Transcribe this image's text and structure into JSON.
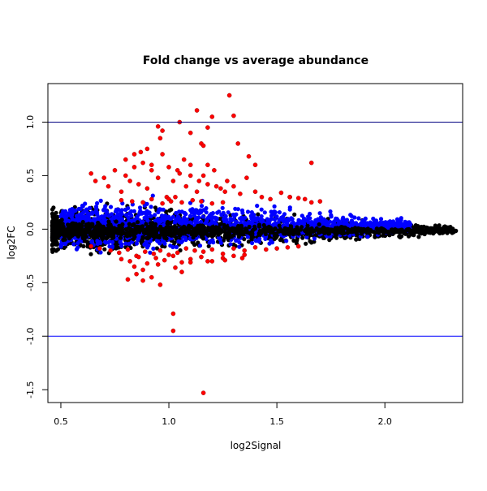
{
  "chart_data": {
    "type": "scatter",
    "title": "Fold change vs average abundance",
    "xlabel": "log2Signal",
    "ylabel": "log2FC",
    "xlim": [
      0.44,
      2.36
    ],
    "ylim": [
      -1.62,
      1.36
    ],
    "x_ticks": [
      0.5,
      1.0,
      1.5,
      2.0
    ],
    "x_tick_labels": [
      "0.5",
      "1.0",
      "1.5",
      "2.0"
    ],
    "y_ticks": [
      -1.5,
      -1.0,
      -0.5,
      0.0,
      0.5,
      1.0
    ],
    "y_tick_labels": [
      "-1.5",
      "-1.0",
      "-0.5",
      "0.0",
      "0.5",
      "1.0"
    ],
    "grid": false,
    "legend": "none",
    "reference_lines": [
      {
        "orientation": "horizontal",
        "y": 1.0,
        "color": "#000080"
      },
      {
        "orientation": "horizontal",
        "y": -1.0,
        "color": "#0000ff"
      }
    ],
    "colors": {
      "black_points": "#000000",
      "blue_points": "#0000ff",
      "red_points": "#ff0000"
    },
    "series": [
      {
        "color": "#ff0000",
        "x": [
          0.64,
          0.66,
          0.7,
          0.72,
          0.75,
          0.78,
          0.8,
          0.82,
          0.84,
          0.86,
          0.88,
          0.9,
          0.92,
          0.95,
          0.97,
          0.99,
          1.02,
          1.05,
          1.08,
          1.1,
          1.13,
          1.16,
          1.18,
          1.21,
          1.24,
          1.27,
          1.3,
          1.33,
          1.36,
          1.4,
          1.43,
          1.47,
          1.52,
          1.56,
          1.6,
          1.63,
          1.66,
          1.7,
          0.9,
          0.95,
          0.97,
          1.05,
          1.1,
          1.13,
          1.15,
          1.16,
          1.18,
          1.2,
          1.28,
          1.3,
          1.32,
          1.37,
          1.4,
          1.56,
          1.66,
          0.8,
          0.84,
          0.87,
          0.92,
          0.96,
          1.0,
          1.04,
          1.07,
          1.1,
          1.14,
          1.18,
          1.22,
          1.26,
          1.0,
          1.03,
          0.78,
          0.83,
          0.88,
          0.92,
          0.97,
          1.01,
          1.06,
          1.11,
          1.15,
          1.2,
          1.25,
          0.64,
          0.68,
          0.73,
          0.77,
          0.81,
          0.85,
          0.89,
          0.93,
          0.96,
          1.0,
          1.04,
          1.08,
          1.12,
          1.16,
          1.2,
          1.25,
          1.3,
          1.35,
          1.4,
          1.45,
          1.5,
          1.55,
          1.6,
          0.78,
          0.82,
          0.86,
          0.9,
          0.94,
          0.98,
          1.02,
          1.06,
          1.1,
          1.15,
          1.2,
          1.25,
          1.3,
          1.35,
          0.84,
          0.88,
          0.95,
          1.03,
          1.1,
          1.18,
          1.26,
          1.34,
          0.85,
          0.92,
          0.96,
          0.88,
          1.06,
          0.81,
          1.02,
          1.02,
          1.16
        ],
        "y": [
          0.52,
          0.45,
          0.48,
          0.4,
          0.55,
          0.35,
          0.5,
          0.45,
          0.58,
          0.42,
          0.62,
          0.38,
          0.55,
          0.48,
          0.7,
          0.3,
          0.45,
          0.52,
          0.4,
          0.6,
          0.35,
          0.5,
          0.42,
          0.55,
          0.38,
          0.45,
          0.4,
          0.33,
          0.48,
          0.35,
          0.3,
          0.28,
          0.34,
          0.3,
          0.29,
          0.28,
          0.62,
          0.26,
          0.75,
          0.96,
          0.92,
          1.0,
          0.9,
          1.11,
          0.8,
          0.78,
          0.95,
          1.05,
          1.25,
          1.06,
          0.8,
          0.68,
          0.6,
          0.3,
          0.25,
          0.65,
          0.7,
          0.72,
          0.6,
          0.85,
          0.58,
          0.55,
          0.65,
          0.5,
          0.45,
          0.6,
          0.4,
          0.35,
          0.28,
          0.3,
          0.27,
          0.26,
          0.25,
          0.28,
          0.24,
          0.26,
          0.25,
          0.27,
          0.26,
          0.24,
          0.25,
          -0.16,
          -0.18,
          -0.2,
          -0.22,
          -0.19,
          -0.25,
          -0.21,
          -0.23,
          -0.2,
          -0.24,
          -0.22,
          -0.18,
          -0.2,
          -0.21,
          -0.19,
          -0.23,
          -0.18,
          -0.2,
          -0.17,
          -0.19,
          -0.18,
          -0.17,
          -0.16,
          -0.28,
          -0.3,
          -0.26,
          -0.32,
          -0.27,
          -0.29,
          -0.25,
          -0.31,
          -0.28,
          -0.26,
          -0.3,
          -0.27,
          -0.25,
          -0.24,
          -0.35,
          -0.38,
          -0.33,
          -0.36,
          -0.31,
          -0.3,
          -0.29,
          -0.27,
          -0.42,
          -0.45,
          -0.52,
          -0.48,
          -0.4,
          -0.47,
          -0.79,
          -0.95,
          -1.53
        ]
      }
    ]
  }
}
